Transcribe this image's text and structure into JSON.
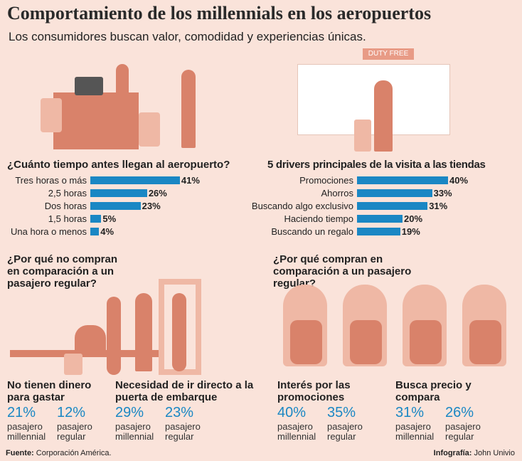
{
  "header": {
    "title": "Comportamiento de los millennials en los aeropuertos",
    "subtitle": "Los consumidores buscan valor, comodidad y experiencias únicas."
  },
  "shop_sign": "DUTY FREE",
  "chart_data": [
    {
      "type": "bar",
      "title": "¿Cuánto tiempo antes llegan al aeropuerto?",
      "categories": [
        "Tres horas o más",
        "2,5 horas",
        "Dos horas",
        "1,5 horas",
        "Una hora o menos"
      ],
      "values": [
        41,
        26,
        23,
        5,
        4
      ],
      "labels": [
        "41%",
        "26%",
        "23%",
        "5%",
        "4%"
      ],
      "unit": "%",
      "color": "#1a87c4"
    },
    {
      "type": "bar",
      "title": "5 drivers principales de la visita a las tiendas",
      "categories": [
        "Promociones",
        "Ahorros",
        "Buscando algo exclusivo",
        "Haciendo tiempo",
        "Buscando un regalo"
      ],
      "values": [
        40,
        33,
        31,
        20,
        19
      ],
      "labels": [
        "40%",
        "33%",
        "31%",
        "20%",
        "19%"
      ],
      "unit": "%",
      "color": "#1a87c4"
    }
  ],
  "section_left": {
    "heading": "¿Por qué no compran en comparación a un pasajero regular?",
    "stats": [
      {
        "title": "No tienen dinero para gastar",
        "a": "21%",
        "a_label": "pasajero millennial",
        "b": "12%",
        "b_label": "pasajero regular"
      },
      {
        "title": "Necesidad de ir directo a la puerta de embarque",
        "a": "29%",
        "a_label": "pasajero millennial",
        "b": "23%",
        "b_label": "pasajero regular"
      }
    ]
  },
  "section_right": {
    "heading": "¿Por qué compran en comparación a un pasajero regular?",
    "stats": [
      {
        "title": "Interés por las promociones",
        "a": "40%",
        "a_label": "pasajero millennial",
        "b": "35%",
        "b_label": "pasajero regular"
      },
      {
        "title": "Busca precio y compara",
        "a": "31%",
        "a_label": "pasajero millennial",
        "b": "26%",
        "b_label": "pasajero regular"
      }
    ]
  },
  "footer": {
    "source_label": "Fuente:",
    "source": "Corporación América.",
    "credit_label": "Infografía:",
    "credit": "John Univio"
  }
}
